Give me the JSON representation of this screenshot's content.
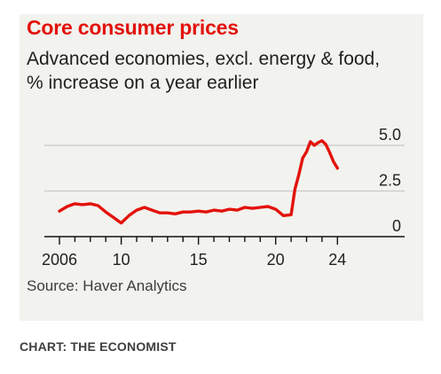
{
  "title": "Core consumer prices",
  "subtitle": "Advanced economies, excl. energy & food, % increase on a year earlier",
  "source": "Source: Haver Analytics",
  "credit": "CHART: THE ECONOMIST",
  "colors": {
    "line": "#e3120b",
    "title": "#e3120b",
    "panel": "#f2f2ee",
    "grid": "#c9c9c5"
  },
  "chart_data": {
    "type": "line",
    "title": "Core consumer prices",
    "subtitle": "Advanced economies, excl. energy & food, % increase on a year earlier",
    "xlabel": "",
    "ylabel": "",
    "xlim": [
      2006,
      2024.5
    ],
    "ylim": [
      0,
      5.0
    ],
    "y_ticks": [
      0,
      2.5,
      5.0
    ],
    "y_tick_labels": [
      "0",
      "2.5",
      "5.0"
    ],
    "x_tick_labels": [
      {
        "value": 2006,
        "label": "2006"
      },
      {
        "value": 2010,
        "label": "10"
      },
      {
        "value": 2015,
        "label": "15"
      },
      {
        "value": 2020,
        "label": "20"
      },
      {
        "value": 2024,
        "label": "24"
      }
    ],
    "grid": "horizontal",
    "y_axis_side": "right",
    "series": [
      {
        "x": [
          2006.0,
          2006.5,
          2007.0,
          2007.5,
          2008.0,
          2008.5,
          2009.0,
          2009.5,
          2010.0,
          2010.5,
          2011.0,
          2011.5,
          2012.0,
          2012.5,
          2013.0,
          2013.5,
          2014.0,
          2014.5,
          2015.0,
          2015.5,
          2016.0,
          2016.5,
          2017.0,
          2017.5,
          2018.0,
          2018.5,
          2019.0,
          2019.5,
          2020.0,
          2020.5,
          2021.0,
          2021.25,
          2021.5,
          2021.75,
          2022.0,
          2022.25,
          2022.5,
          2022.75,
          2023.0,
          2023.25,
          2023.5,
          2023.75,
          2024.0
        ],
        "y": [
          1.4,
          1.65,
          1.8,
          1.75,
          1.8,
          1.7,
          1.35,
          1.05,
          0.75,
          1.15,
          1.45,
          1.6,
          1.45,
          1.3,
          1.3,
          1.25,
          1.35,
          1.35,
          1.4,
          1.35,
          1.45,
          1.4,
          1.5,
          1.45,
          1.6,
          1.55,
          1.6,
          1.65,
          1.5,
          1.15,
          1.2,
          2.6,
          3.4,
          4.3,
          4.65,
          5.2,
          5.0,
          5.15,
          5.25,
          5.05,
          4.6,
          4.1,
          3.75
        ]
      }
    ]
  }
}
